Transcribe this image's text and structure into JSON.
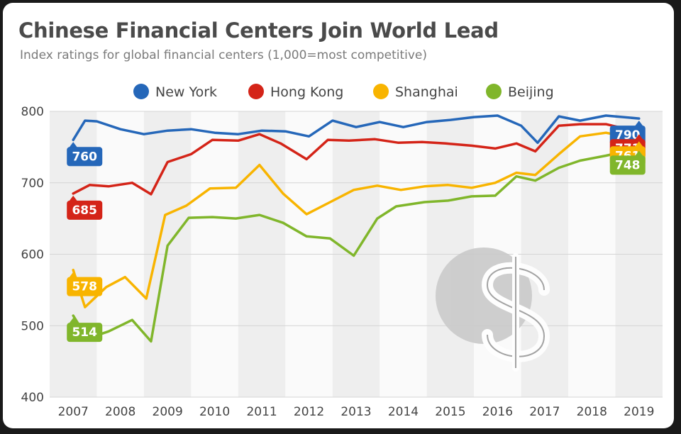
{
  "chart_data": {
    "type": "line",
    "title": "Chinese Financial Centers Join World Lead",
    "subtitle": "Index ratings for global financial centers (1,000=most competitive)",
    "xlabel": "",
    "ylabel": "",
    "ylim": [
      400,
      800
    ],
    "yticks": [
      800,
      700,
      600,
      500,
      400
    ],
    "xticks": [
      "2007",
      "2008",
      "2009",
      "2010",
      "2011",
      "2012",
      "2013",
      "2014",
      "2015",
      "2016",
      "2017",
      "2018",
      "2019"
    ],
    "xlim": [
      2007,
      2019
    ],
    "grid": true,
    "legend_position": "top",
    "series": [
      {
        "name": "New York",
        "color": "#2567b9",
        "start_label": "760",
        "end_label": "790",
        "points": [
          [
            2007.0,
            760
          ],
          [
            2007.25,
            787
          ],
          [
            2007.5,
            786
          ],
          [
            2008.0,
            775
          ],
          [
            2008.5,
            768
          ],
          [
            2009.0,
            773
          ],
          [
            2009.5,
            775
          ],
          [
            2010.0,
            770
          ],
          [
            2010.5,
            768
          ],
          [
            2011.0,
            773
          ],
          [
            2011.5,
            772
          ],
          [
            2012.0,
            765
          ],
          [
            2012.5,
            787
          ],
          [
            2013.0,
            778
          ],
          [
            2013.5,
            785
          ],
          [
            2014.0,
            778
          ],
          [
            2014.5,
            785
          ],
          [
            2015.0,
            788
          ],
          [
            2015.5,
            792
          ],
          [
            2016.0,
            794
          ],
          [
            2016.5,
            780
          ],
          [
            2016.85,
            756
          ],
          [
            2017.3,
            793
          ],
          [
            2017.75,
            787
          ],
          [
            2018.3,
            794
          ],
          [
            2019.0,
            790
          ]
        ]
      },
      {
        "name": "Hong Kong",
        "color": "#d42418",
        "start_label": "685",
        "end_label": "771",
        "points": [
          [
            2007.0,
            685
          ],
          [
            2007.35,
            697
          ],
          [
            2007.75,
            695
          ],
          [
            2008.25,
            700
          ],
          [
            2008.65,
            684
          ],
          [
            2009.0,
            729
          ],
          [
            2009.5,
            740
          ],
          [
            2009.95,
            760
          ],
          [
            2010.5,
            759
          ],
          [
            2010.95,
            768
          ],
          [
            2011.4,
            755
          ],
          [
            2011.95,
            733
          ],
          [
            2012.4,
            760
          ],
          [
            2012.85,
            759
          ],
          [
            2013.4,
            761
          ],
          [
            2013.9,
            756
          ],
          [
            2014.4,
            757
          ],
          [
            2014.9,
            755
          ],
          [
            2015.45,
            752
          ],
          [
            2015.95,
            748
          ],
          [
            2016.4,
            755
          ],
          [
            2016.8,
            744
          ],
          [
            2017.3,
            780
          ],
          [
            2017.75,
            782
          ],
          [
            2018.3,
            782
          ],
          [
            2019.0,
            771
          ]
        ]
      },
      {
        "name": "Shanghai",
        "color": "#f8b400",
        "start_label": "578",
        "end_label": "761",
        "points": [
          [
            2007.0,
            578
          ],
          [
            2007.25,
            526
          ],
          [
            2007.7,
            554
          ],
          [
            2008.1,
            568
          ],
          [
            2008.55,
            538
          ],
          [
            2008.95,
            655
          ],
          [
            2009.4,
            668
          ],
          [
            2009.9,
            692
          ],
          [
            2010.45,
            693
          ],
          [
            2010.95,
            725
          ],
          [
            2011.45,
            685
          ],
          [
            2011.95,
            656
          ],
          [
            2012.45,
            673
          ],
          [
            2012.95,
            690
          ],
          [
            2013.45,
            696
          ],
          [
            2013.95,
            690
          ],
          [
            2014.45,
            695
          ],
          [
            2014.95,
            697
          ],
          [
            2015.45,
            693
          ],
          [
            2015.95,
            700
          ],
          [
            2016.4,
            714
          ],
          [
            2016.8,
            711
          ],
          [
            2017.3,
            740
          ],
          [
            2017.75,
            765
          ],
          [
            2018.3,
            770
          ],
          [
            2019.0,
            761
          ]
        ]
      },
      {
        "name": "Beijing",
        "color": "#80b62b",
        "start_label": "514",
        "end_label": "748",
        "points": [
          [
            2007.0,
            514
          ],
          [
            2007.3,
            482
          ],
          [
            2007.75,
            492
          ],
          [
            2008.25,
            508
          ],
          [
            2008.65,
            478
          ],
          [
            2009.0,
            612
          ],
          [
            2009.45,
            651
          ],
          [
            2009.95,
            652
          ],
          [
            2010.45,
            650
          ],
          [
            2010.95,
            655
          ],
          [
            2011.45,
            644
          ],
          [
            2011.95,
            625
          ],
          [
            2012.45,
            622
          ],
          [
            2012.95,
            598
          ],
          [
            2013.45,
            650
          ],
          [
            2013.85,
            667
          ],
          [
            2014.45,
            673
          ],
          [
            2014.95,
            675
          ],
          [
            2015.45,
            681
          ],
          [
            2015.95,
            682
          ],
          [
            2016.4,
            709
          ],
          [
            2016.8,
            703
          ],
          [
            2017.3,
            721
          ],
          [
            2017.75,
            731
          ],
          [
            2018.3,
            738
          ],
          [
            2019.0,
            748
          ]
        ]
      }
    ]
  }
}
